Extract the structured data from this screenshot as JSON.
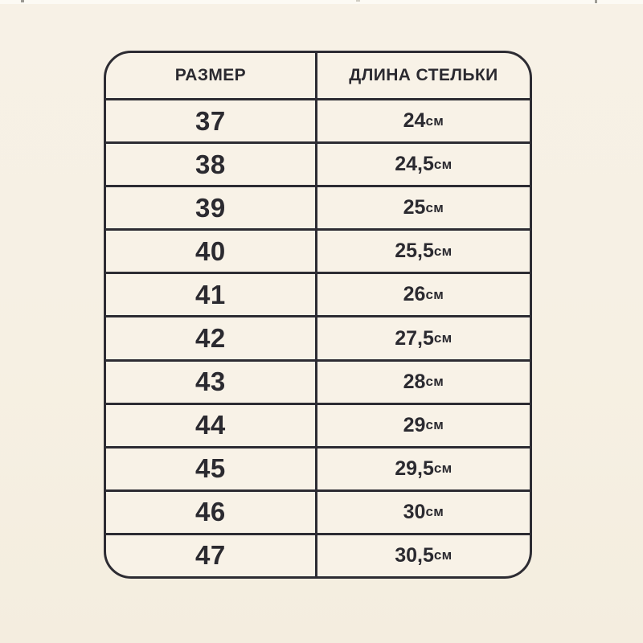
{
  "page": {
    "background_color": "#f6f0e3"
  },
  "colors": {
    "table_line": "#2d2c33",
    "text": "#2b2a30",
    "cell_background": "#f8f2e7"
  },
  "chart_data": {
    "type": "table",
    "title": "",
    "columns": [
      "РАЗМЕР",
      "ДЛИНА СТЕЛЬКИ"
    ],
    "unit": "см",
    "rows": [
      {
        "size": "37",
        "insole_length_cm": "24"
      },
      {
        "size": "38",
        "insole_length_cm": "24,5"
      },
      {
        "size": "39",
        "insole_length_cm": "25"
      },
      {
        "size": "40",
        "insole_length_cm": "25,5"
      },
      {
        "size": "41",
        "insole_length_cm": "26"
      },
      {
        "size": "42",
        "insole_length_cm": "27,5"
      },
      {
        "size": "43",
        "insole_length_cm": "28"
      },
      {
        "size": "44",
        "insole_length_cm": "29"
      },
      {
        "size": "45",
        "insole_length_cm": "29,5"
      },
      {
        "size": "46",
        "insole_length_cm": "30"
      },
      {
        "size": "47",
        "insole_length_cm": "30,5"
      }
    ]
  }
}
